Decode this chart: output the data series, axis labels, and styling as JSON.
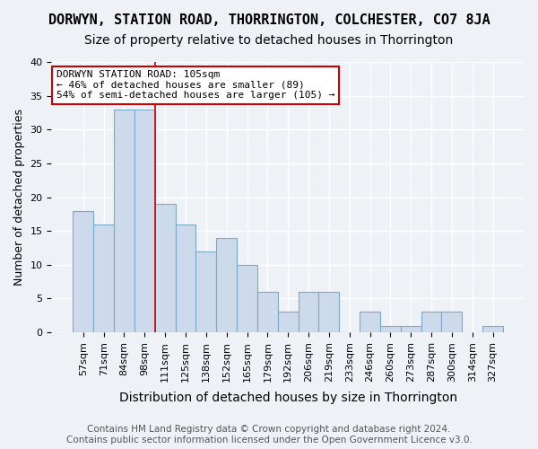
{
  "title": "DORWYN, STATION ROAD, THORRINGTON, COLCHESTER, CO7 8JA",
  "subtitle": "Size of property relative to detached houses in Thorrington",
  "xlabel": "Distribution of detached houses by size in Thorrington",
  "ylabel": "Number of detached properties",
  "categories": [
    "57sqm",
    "71sqm",
    "84sqm",
    "98sqm",
    "111sqm",
    "125sqm",
    "138sqm",
    "152sqm",
    "165sqm",
    "179sqm",
    "192sqm",
    "206sqm",
    "219sqm",
    "233sqm",
    "246sqm",
    "260sqm",
    "273sqm",
    "287sqm",
    "300sqm",
    "314sqm",
    "327sqm"
  ],
  "values": [
    18,
    16,
    33,
    33,
    19,
    16,
    12,
    14,
    10,
    6,
    3,
    6,
    6,
    0,
    3,
    1,
    1,
    3,
    3,
    0,
    1
  ],
  "bar_color": "#ccdaeb",
  "bar_edge_color": "#7aaac8",
  "annotation_box_text": "DORWYN STATION ROAD: 105sqm\n← 46% of detached houses are smaller (89)\n54% of semi-detached houses are larger (105) →",
  "annotation_box_color": "#ffffff",
  "annotation_box_edge_color": "#cc0000",
  "red_line_x": 3.5,
  "ylim": [
    0,
    40
  ],
  "yticks": [
    0,
    5,
    10,
    15,
    20,
    25,
    30,
    35,
    40
  ],
  "footnote": "Contains HM Land Registry data © Crown copyright and database right 2024.\nContains public sector information licensed under the Open Government Licence v3.0.",
  "background_color": "#eef2f7",
  "grid_color": "#ffffff",
  "title_fontsize": 11,
  "subtitle_fontsize": 10,
  "xlabel_fontsize": 10,
  "ylabel_fontsize": 9,
  "tick_fontsize": 8,
  "annotation_fontsize": 8,
  "footnote_fontsize": 7.5
}
